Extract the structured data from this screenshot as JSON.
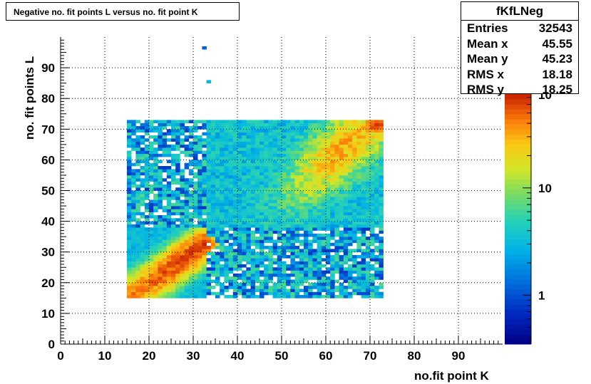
{
  "title": "Negative no. fit points L versus no. fit point K",
  "stats": {
    "name": "fKfLNeg",
    "rows": [
      {
        "label": "Entries",
        "value": "32543"
      },
      {
        "label": "Mean x",
        "value": "45.55"
      },
      {
        "label": "Mean y",
        "value": "45.23"
      },
      {
        "label": "RMS x",
        "value": "18.18"
      },
      {
        "label": "RMS y",
        "value": "18.25"
      }
    ]
  },
  "chart_data": {
    "type": "heatmap",
    "title": "Negative no. fit points L versus no. fit point K",
    "xlabel": "no.fit point K",
    "ylabel": "no. fit points  L",
    "xlim": [
      0,
      100
    ],
    "ylim": [
      0,
      100
    ],
    "x_ticks": [
      "0",
      "10",
      "20",
      "30",
      "40",
      "50",
      "60",
      "70",
      "80",
      "90"
    ],
    "y_ticks": [
      "0",
      "10",
      "20",
      "30",
      "40",
      "50",
      "60",
      "70",
      "80",
      "90"
    ],
    "grid": true,
    "log_z": true,
    "z_range": [
      0.35,
      75
    ],
    "z_ticks": [
      "1",
      "10",
      "10"
    ],
    "filled_region": {
      "x": [
        15,
        73
      ],
      "y": [
        15,
        73
      ]
    },
    "hot_spots": [
      {
        "x": 27,
        "y": 27,
        "z": 60
      },
      {
        "x": 18,
        "y": 18,
        "z": 35
      },
      {
        "x": 32,
        "y": 32,
        "z": 70
      },
      {
        "x": 71,
        "y": 71,
        "z": 65
      },
      {
        "x": 62,
        "y": 63,
        "z": 35
      }
    ],
    "isolated_bins": [
      {
        "x": 32,
        "y": 96,
        "z": 1.2
      },
      {
        "x": 33,
        "y": 85,
        "z": 3
      }
    ]
  }
}
